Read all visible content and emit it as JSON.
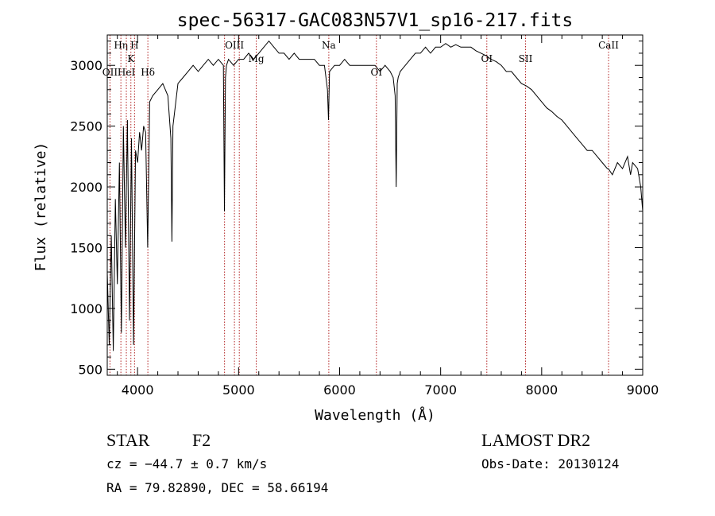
{
  "chart_data": {
    "type": "line",
    "title": "spec-56317-GAC083N57V1_sp16-217.fits",
    "xlabel": "Wavelength (Å)",
    "ylabel": "Flux (relative)",
    "xlim": [
      3700,
      9000
    ],
    "ylim": [
      450,
      3250
    ],
    "xticks": [
      4000,
      5000,
      6000,
      7000,
      8000,
      9000
    ],
    "yticks": [
      500,
      1000,
      1500,
      2000,
      2500,
      3000
    ],
    "grid": false,
    "series": [
      {
        "x": [
          3700,
          3720,
          3740,
          3760,
          3780,
          3800,
          3820,
          3840,
          3860,
          3880,
          3900,
          3920,
          3940,
          3960,
          3980,
          4000,
          4020,
          4040,
          4060,
          4080,
          4100,
          4120,
          4150,
          4200,
          4250,
          4300,
          4330,
          4340,
          4350,
          4400,
          4450,
          4500,
          4550,
          4600,
          4650,
          4700,
          4750,
          4800,
          4850,
          4860,
          4870,
          4880,
          4900,
          4950,
          5000,
          5050,
          5100,
          5150,
          5200,
          5250,
          5300,
          5350,
          5400,
          5450,
          5500,
          5550,
          5600,
          5650,
          5700,
          5750,
          5800,
          5850,
          5880,
          5890,
          5900,
          5950,
          6000,
          6050,
          6100,
          6150,
          6200,
          6250,
          6300,
          6350,
          6400,
          6450,
          6500,
          6530,
          6550,
          6560,
          6570,
          6580,
          6600,
          6650,
          6700,
          6750,
          6800,
          6850,
          6900,
          6950,
          7000,
          7050,
          7100,
          7150,
          7200,
          7250,
          7300,
          7350,
          7400,
          7450,
          7500,
          7550,
          7600,
          7650,
          7700,
          7750,
          7800,
          7850,
          7900,
          7950,
          8000,
          8050,
          8100,
          8150,
          8200,
          8250,
          8300,
          8350,
          8400,
          8450,
          8500,
          8550,
          8600,
          8650,
          8660,
          8700,
          8750,
          8800,
          8850,
          8880,
          8900,
          8950,
          8980,
          9000
        ],
        "y": [
          1300,
          700,
          1600,
          650,
          1900,
          1200,
          2200,
          800,
          2500,
          1500,
          2550,
          900,
          2400,
          700,
          2300,
          2200,
          2450,
          2300,
          2500,
          2450,
          1500,
          2700,
          2750,
          2800,
          2850,
          2750,
          2400,
          1550,
          2500,
          2850,
          2900,
          2950,
          3000,
          2950,
          3000,
          3050,
          3000,
          3050,
          3000,
          1800,
          2900,
          3000,
          3050,
          3000,
          3050,
          3050,
          3100,
          3050,
          3100,
          3150,
          3200,
          3150,
          3100,
          3100,
          3050,
          3100,
          3050,
          3050,
          3050,
          3050,
          3000,
          3000,
          2800,
          2550,
          2950,
          3000,
          3000,
          3050,
          3000,
          3000,
          3000,
          3000,
          3000,
          3000,
          2950,
          3000,
          2950,
          2900,
          2750,
          2000,
          2850,
          2900,
          2950,
          3000,
          3050,
          3100,
          3100,
          3150,
          3100,
          3150,
          3150,
          3180,
          3150,
          3170,
          3150,
          3150,
          3150,
          3120,
          3100,
          3080,
          3050,
          3030,
          3000,
          2950,
          2950,
          2900,
          2850,
          2830,
          2800,
          2750,
          2700,
          2650,
          2620,
          2580,
          2550,
          2500,
          2450,
          2400,
          2350,
          2300,
          2300,
          2250,
          2200,
          2150,
          2150,
          2100,
          2200,
          2150,
          2250,
          2100,
          2200,
          2150,
          2000,
          1800
        ]
      }
    ],
    "lines": [
      {
        "wave": 3727,
        "label": "OII",
        "row": 2
      },
      {
        "wave": 3835,
        "label": "Hη",
        "row": 0
      },
      {
        "wave": 3889,
        "label": "HeI",
        "row": 2
      },
      {
        "wave": 3934,
        "label": "K",
        "row": 1
      },
      {
        "wave": 3970,
        "label": "H",
        "row": 0
      },
      {
        "wave": 4102,
        "label": "Hδ",
        "row": 2
      },
      {
        "wave": 4861,
        "label": "",
        "row": 0
      },
      {
        "wave": 4959,
        "label": "OIII",
        "row": 0
      },
      {
        "wave": 5007,
        "label": "",
        "row": 0
      },
      {
        "wave": 5175,
        "label": "Mg",
        "row": 1
      },
      {
        "wave": 5893,
        "label": "Na",
        "row": 0
      },
      {
        "wave": 6364,
        "label": "OI",
        "row": 2
      },
      {
        "wave": 7457,
        "label": "OI",
        "row": 1
      },
      {
        "wave": 7840,
        "label": "SII",
        "row": 1
      },
      {
        "wave": 8662,
        "label": "CaII",
        "row": 0
      }
    ]
  },
  "info": {
    "class": "STAR",
    "subclass": "F2",
    "cz": "cz = −44.7 ± 0.7 km/s",
    "radec": "RA =  79.82890, DEC =  58.66194",
    "survey": "LAMOST DR2",
    "obsdate": "Obs-Date: 20130124"
  },
  "colors": {
    "line_marker": "#b22222",
    "spectrum": "#000000"
  }
}
